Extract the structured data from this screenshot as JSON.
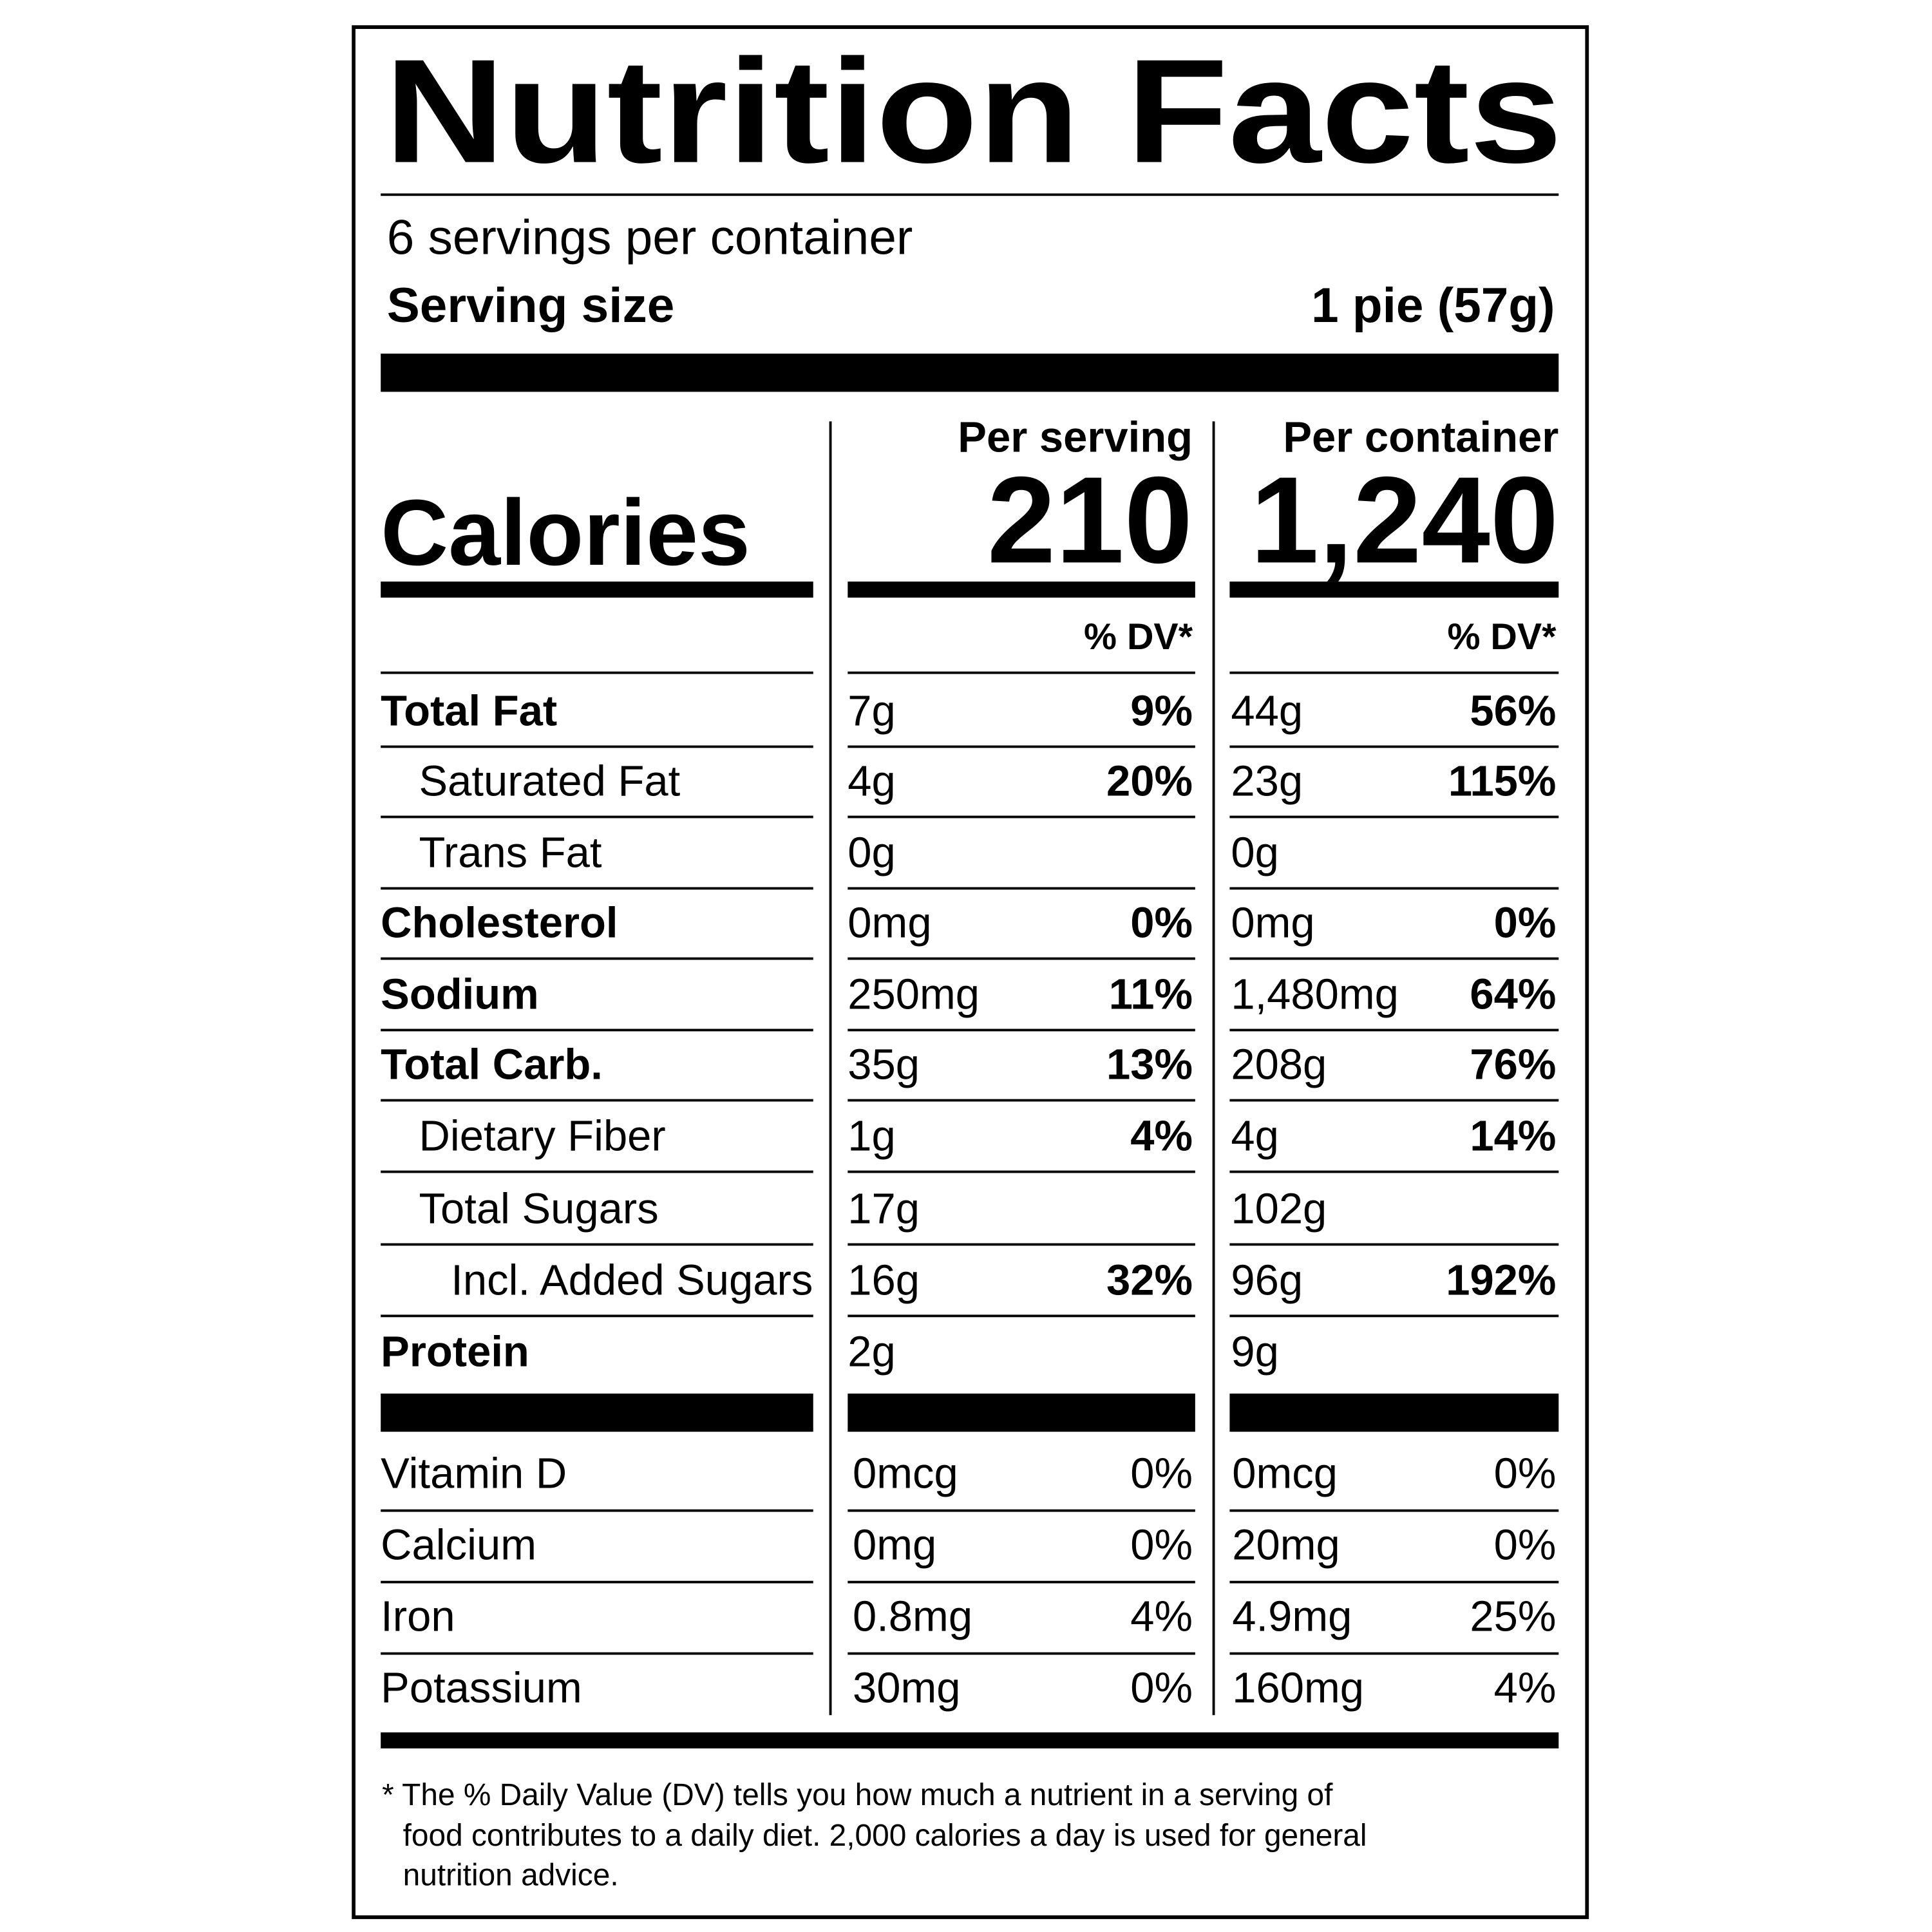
{
  "header": {
    "title": "Nutrition Facts",
    "servings": "6 servings per container",
    "serving_size_label": "Serving size",
    "serving_size": "1 pie (57g)"
  },
  "columns": {
    "per_serving": "Per serving",
    "per_container": "Per container",
    "dv_heading": "% DV*"
  },
  "calories": {
    "label": "Calories",
    "per_serving": "210",
    "per_container": "1,240"
  },
  "nutrients": [
    {
      "label": "Total Fat",
      "serving_amount": "7g",
      "serving_dv": "9%",
      "container_amount": "44g",
      "container_dv": "56%"
    },
    {
      "label": "Saturated Fat",
      "serving_amount": "4g",
      "serving_dv": "20%",
      "container_amount": "23g",
      "container_dv": "115%"
    },
    {
      "label": "Trans Fat",
      "serving_amount": "0g",
      "serving_dv": null,
      "container_amount": "0g",
      "container_dv": null
    },
    {
      "label": "Cholesterol",
      "serving_amount": "0mg",
      "serving_dv": "0%",
      "container_amount": "0mg",
      "container_dv": "0%"
    },
    {
      "label": "Sodium",
      "serving_amount": "250mg",
      "serving_dv": "11%",
      "container_amount": "1,480mg",
      "container_dv": "64%"
    },
    {
      "label": "Total Carb.",
      "serving_amount": "35g",
      "serving_dv": "13%",
      "container_amount": "208g",
      "container_dv": "76%"
    },
    {
      "label": "Dietary Fiber",
      "serving_amount": "1g",
      "serving_dv": "4%",
      "container_amount": "4g",
      "container_dv": "14%"
    },
    {
      "label": "Total Sugars",
      "serving_amount": "17g",
      "serving_dv": null,
      "container_amount": "102g",
      "container_dv": null
    },
    {
      "label": "Incl. Added Sugars",
      "serving_amount": "16g",
      "serving_dv": "32%",
      "container_amount": "96g",
      "container_dv": "192%"
    },
    {
      "label": "Protein",
      "serving_amount": "2g",
      "serving_dv": null,
      "container_amount": "9g",
      "container_dv": null
    }
  ],
  "vitamins": [
    {
      "label": "Vitamin D",
      "serving_amount": "0mcg",
      "serving_dv": "0%",
      "container_amount": "0mcg",
      "container_dv": "0%"
    },
    {
      "label": "Calcium",
      "serving_amount": "0mg",
      "serving_dv": "0%",
      "container_amount": "20mg",
      "container_dv": "0%"
    },
    {
      "label": "Iron",
      "serving_amount": "0.8mg",
      "serving_dv": "4%",
      "container_amount": "4.9mg",
      "container_dv": "25%"
    },
    {
      "label": "Potassium",
      "serving_amount": "30mg",
      "serving_dv": "0%",
      "container_amount": "160mg",
      "container_dv": "4%"
    }
  ],
  "footnote": {
    "lines": [
      "* The % Daily Value (DV) tells you how much a nutrient in a serving of",
      "food contributes to a daily diet. 2,000 calories a day is used for general",
      "nutrition advice."
    ]
  }
}
